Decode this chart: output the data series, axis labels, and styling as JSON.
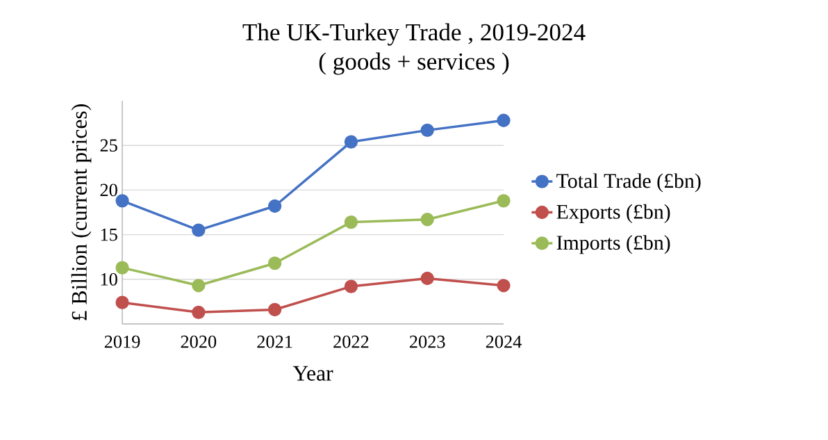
{
  "chart_data": {
    "type": "line",
    "title": "The UK-Turkey Trade , 2019-2024",
    "subtitle": "( goods + services )",
    "xlabel": "Year",
    "ylabel": "£ Billion  (current prices)",
    "categories": [
      "2019",
      "2020",
      "2021",
      "2022",
      "2023",
      "2024"
    ],
    "series": [
      {
        "name": "Total Trade (£bn)",
        "color": "#4472c4",
        "values": [
          18.8,
          15.5,
          18.2,
          25.4,
          26.7,
          27.8
        ]
      },
      {
        "name": "Exports (£bn)",
        "color": "#c0504d",
        "values": [
          7.4,
          6.3,
          6.6,
          9.2,
          10.1,
          9.3
        ]
      },
      {
        "name": "Imports (£bn)",
        "color": "#9bbb59",
        "values": [
          11.3,
          9.3,
          11.8,
          16.4,
          16.7,
          18.8
        ]
      }
    ],
    "ylim": [
      5,
      30
    ],
    "yticks": [
      10,
      15,
      20,
      25
    ],
    "grid": "y",
    "legend": "right",
    "marker": "circle",
    "line_style": "solid"
  }
}
